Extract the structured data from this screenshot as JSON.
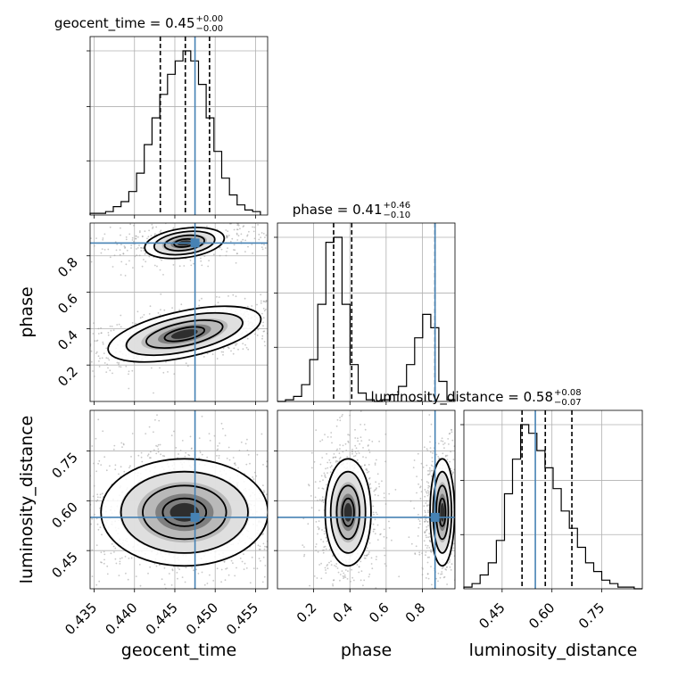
{
  "chart_data": {
    "type": "corner",
    "parameters": [
      {
        "name": "geocent_time",
        "axis_label": "geocent_time",
        "title_main": "geocent_time = 0.45",
        "title_sup": "+0.00",
        "title_sub": "−0.00",
        "range": [
          0.4345,
          0.4565
        ],
        "ticks": [
          "0.435",
          "0.440",
          "0.445",
          "0.450",
          "0.455"
        ],
        "tick_values": [
          0.435,
          0.44,
          0.445,
          0.45,
          0.455
        ],
        "truth": 0.4475,
        "quantiles": [
          0.4432,
          0.4463,
          0.4493
        ],
        "hist_edges": [
          0.4345,
          0.4556
        ],
        "hist_counts": [
          1,
          1,
          2,
          5,
          8,
          14,
          25,
          42,
          58,
          72,
          84,
          92,
          98,
          92,
          78,
          58,
          38,
          22,
          12,
          6,
          3,
          2
        ]
      },
      {
        "name": "phase",
        "axis_label": "phase",
        "title_main": "phase = 0.41",
        "title_sup": "+0.46",
        "title_sub": "−0.10",
        "range": [
          0.0,
          0.98
        ],
        "ticks": [
          "0.2",
          "0.4",
          "0.6",
          "0.8"
        ],
        "tick_values": [
          0.2,
          0.4,
          0.6,
          0.8
        ],
        "truth": 0.87,
        "quantiles": [
          0.31,
          0.41,
          0.87
        ],
        "hist_edges": [
          0.0,
          0.98
        ],
        "hist_counts": [
          0,
          1,
          3,
          10,
          25,
          58,
          95,
          98,
          58,
          22,
          5,
          1,
          0,
          1,
          4,
          9,
          22,
          38,
          52,
          44,
          12,
          1
        ]
      },
      {
        "name": "luminosity_distance",
        "axis_label": "luminosity_distance",
        "title_main": "luminosity_distance = 0.58",
        "title_sup": "+0.08",
        "title_sub": "−0.07",
        "range": [
          0.335,
          0.872
        ],
        "ticks": [
          "0.45",
          "0.60",
          "0.75"
        ],
        "tick_values": [
          0.45,
          0.6,
          0.75
        ],
        "truth": 0.55,
        "quantiles": [
          0.51,
          0.58,
          0.66
        ],
        "hist_edges": [
          0.335,
          0.872
        ],
        "hist_counts": [
          1,
          3,
          8,
          15,
          28,
          55,
          75,
          95,
          90,
          80,
          70,
          58,
          45,
          35,
          24,
          15,
          10,
          5,
          3,
          1,
          1,
          0
        ]
      }
    ],
    "density_peaks": {
      "geocent_time_vs_phase": [
        [
          0.4455,
          0.37
        ],
        [
          0.4455,
          0.87
        ]
      ],
      "geocent_time_vs_luminosity_distance": [
        [
          0.4455,
          0.56
        ]
      ],
      "phase_vs_luminosity_distance": [
        [
          0.38,
          0.56
        ],
        [
          0.9,
          0.56
        ]
      ]
    },
    "marker_color": "#4682b4",
    "grid": true
  }
}
